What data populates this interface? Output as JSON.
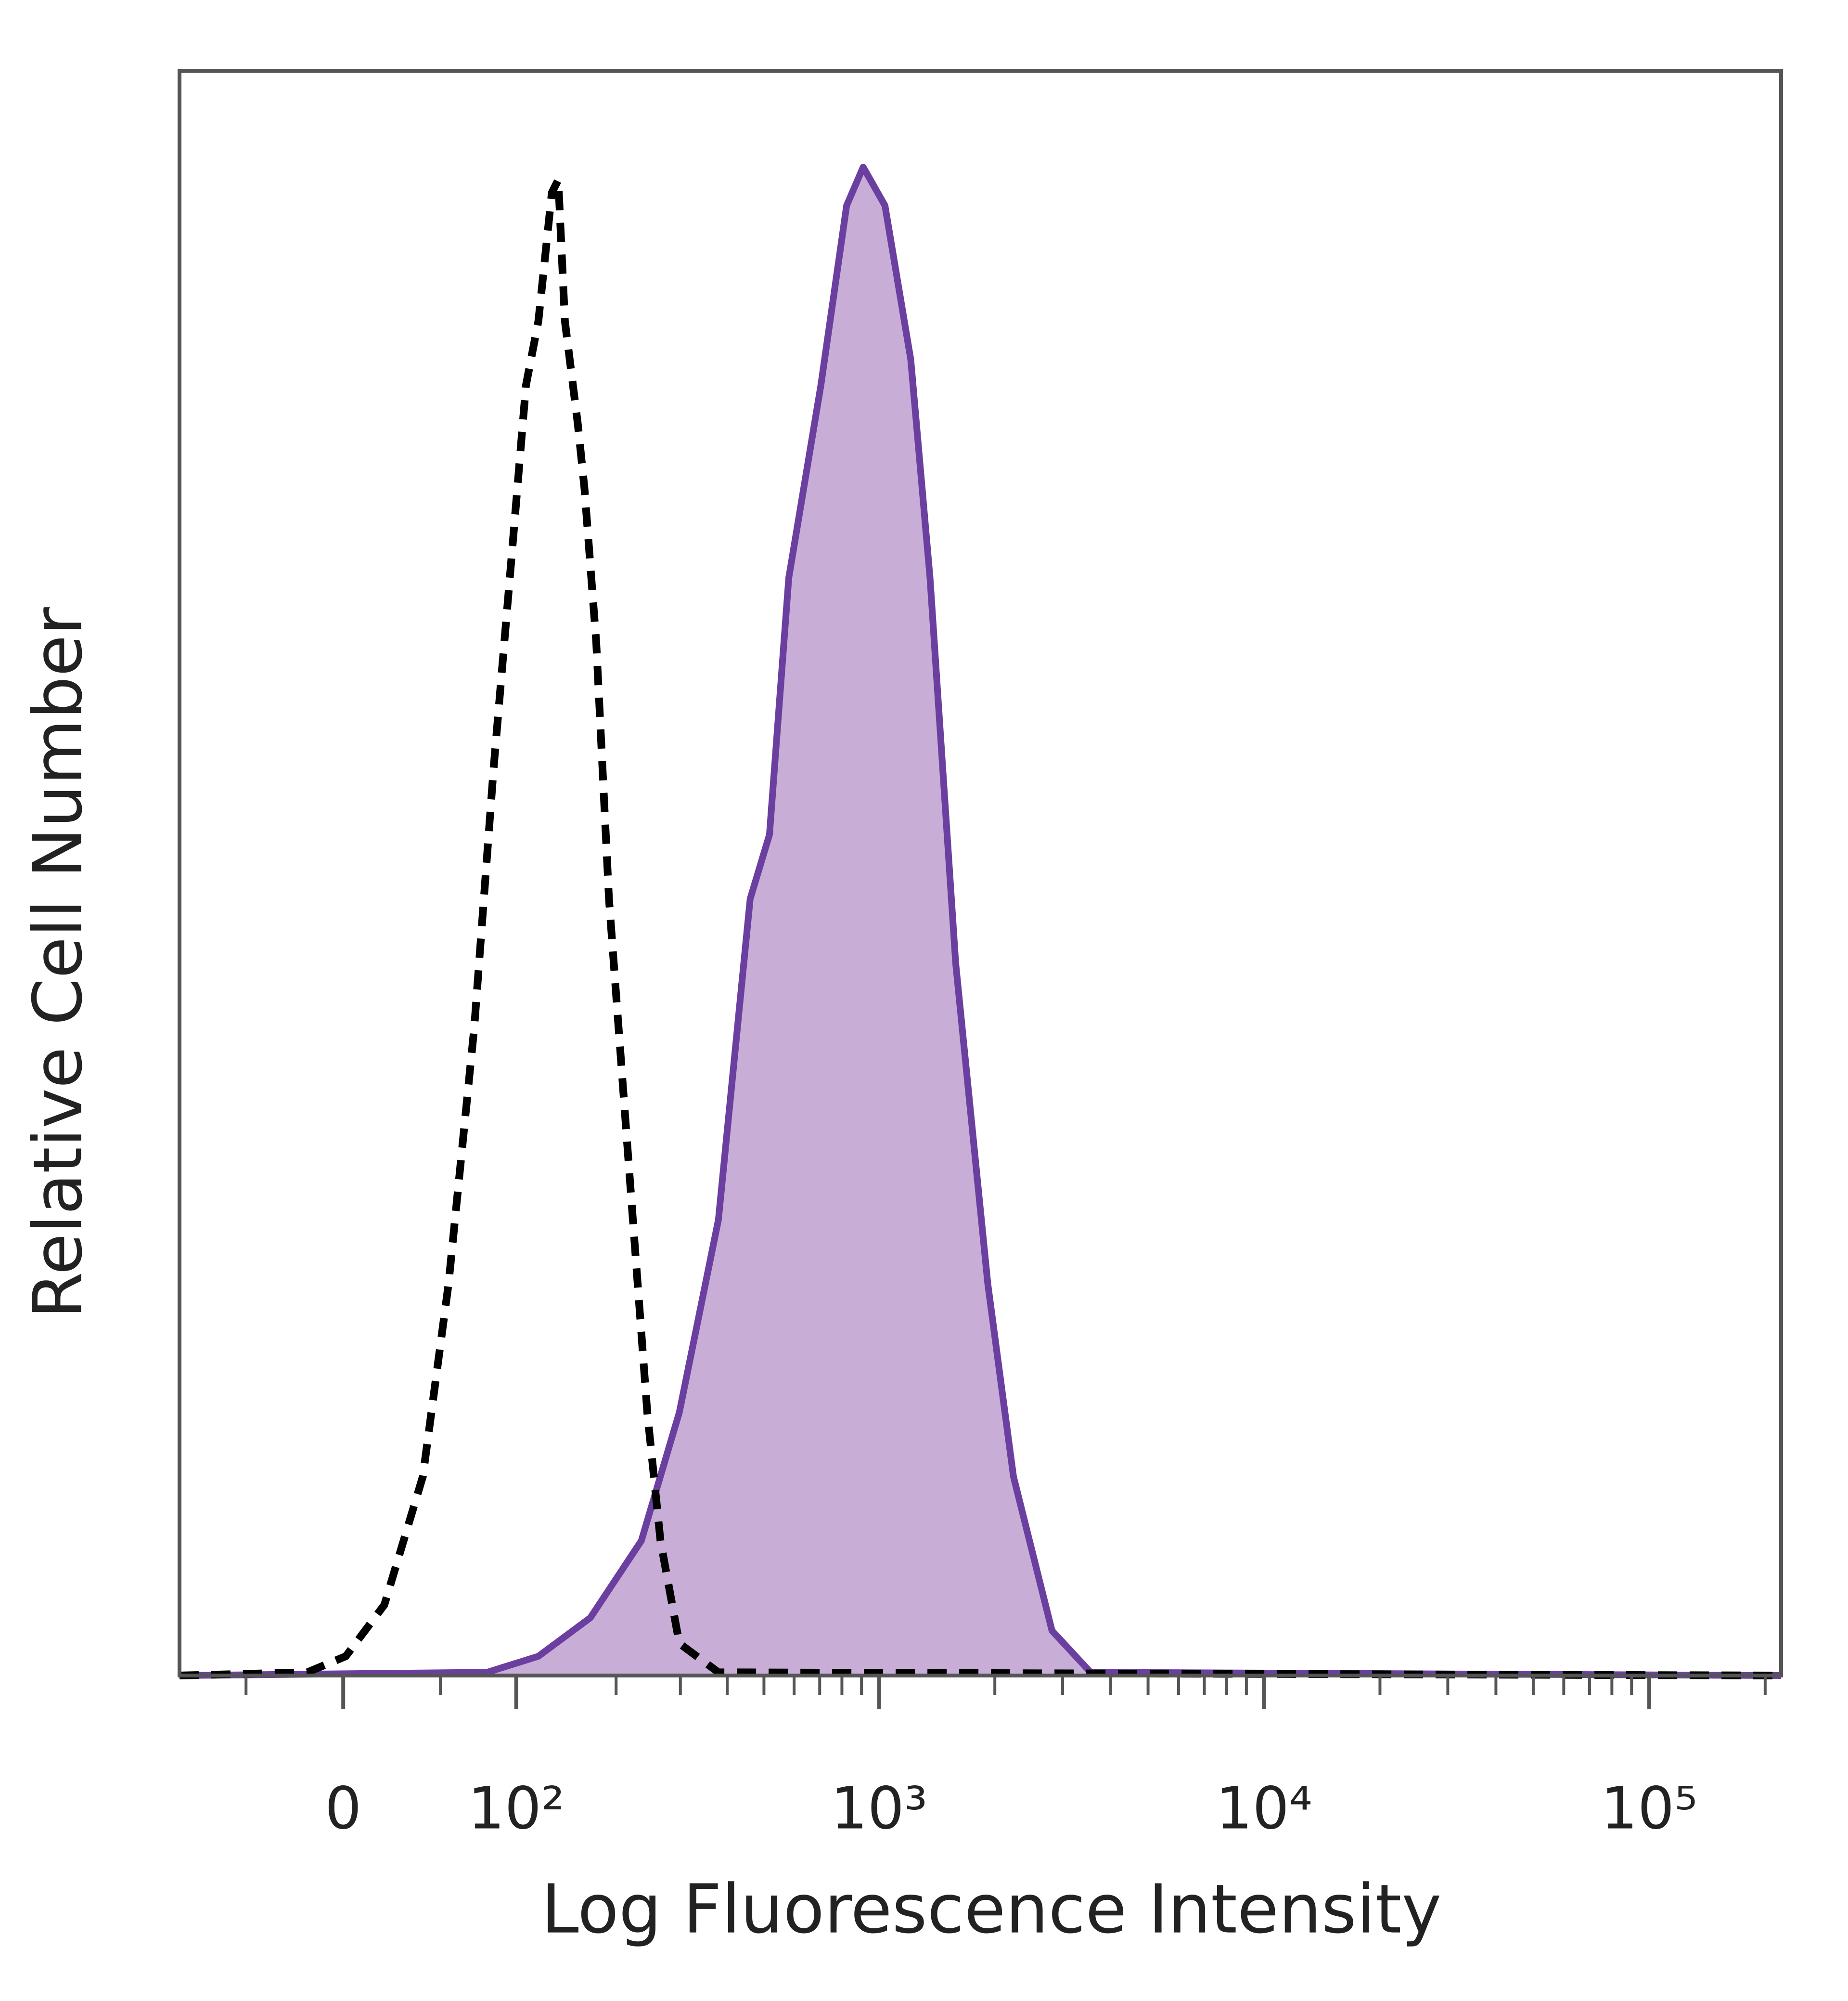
{
  "chart_data": {
    "type": "histogram-overlay",
    "xlabel": "Log Fluorescence Intensity",
    "ylabel": "Relative Cell Number",
    "xscale": "biexponential",
    "xlim": [
      -93,
      220000
    ],
    "ylim": [
      0,
      100
    ],
    "xticks": [
      0,
      {
        "value": 100,
        "label": "10²"
      },
      {
        "value": 1000,
        "label": "10³"
      },
      {
        "value": 10000,
        "label": "10⁴"
      },
      {
        "value": 100000,
        "label": "10⁵"
      }
    ],
    "xminorticks": [
      -50,
      50,
      200,
      300,
      400,
      500,
      600,
      700,
      800,
      900,
      2000,
      3000,
      4000,
      5000,
      6000,
      7000,
      8000,
      9000,
      20000,
      30000,
      40000,
      50000,
      60000,
      70000,
      80000,
      90000,
      200000
    ],
    "series": [
      {
        "color": "#6b3fa0",
        "fill": "#c8aed6",
        "dashed": false,
        "x": [
          -93,
          79,
          118,
          169,
          235,
          298,
          379,
          460,
          517,
          581,
          705,
          823,
          909,
          1036,
          1209,
          1357,
          1582,
          1918,
          2236,
          2815,
          3545,
          220000
        ],
        "values": [
          0,
          0.2,
          1.2,
          3.6,
          8.4,
          16.4,
          28.4,
          48.4,
          52.4,
          68.4,
          80.4,
          91.6,
          94,
          91.6,
          82,
          68.4,
          44.4,
          24.4,
          12.4,
          2.8,
          0.2,
          0
        ]
      },
      {
        "color": "#000000",
        "fill": null,
        "dashed": true,
        "x": [
          -93,
          -17.6,
          1.25,
          20.2,
          40.2,
          54.7,
          70.5,
          83.3,
          97.6,
          107.7,
          118,
          129.9,
          135.9,
          142.3,
          155.4,
          162.5,
          175.7,
          191,
          216,
          244,
          265,
          298,
          379,
          220000
        ],
        "values": [
          0,
          0.2,
          1.2,
          4.4,
          12.4,
          24.4,
          40.4,
          56.4,
          70.8,
          80.4,
          84.4,
          92.4,
          93.2,
          84.4,
          78,
          74,
          64.4,
          48.4,
          32.4,
          16.4,
          8.4,
          2,
          0.2,
          0
        ]
      }
    ]
  }
}
